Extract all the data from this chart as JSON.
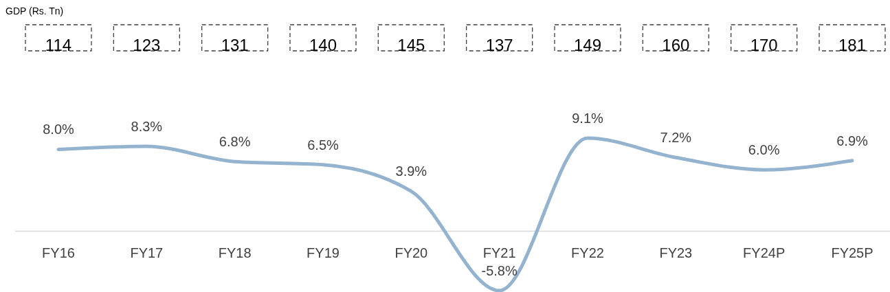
{
  "chart_data": {
    "type": "line",
    "categories": [
      "FY16",
      "FY17",
      "FY18",
      "FY19",
      "FY20",
      "FY21",
      "FY22",
      "FY23",
      "FY24P",
      "FY25P"
    ],
    "series": [
      {
        "color": "#94b3cf",
        "values": [
          8.0,
          8.3,
          6.8,
          6.5,
          3.9,
          -5.8,
          9.1,
          7.2,
          6.0,
          6.9
        ],
        "value_labels": [
          "8.0%",
          "8.3%",
          "6.8%",
          "6.5%",
          "3.9%",
          "-5.8%",
          "9.1%",
          "7.2%",
          "6.0%",
          "6.9%"
        ]
      }
    ],
    "annotations": [
      "GDP (Rs. Tn)",
      "114",
      "123",
      "131",
      "140",
      "145",
      "137",
      "149",
      "160",
      "170",
      "181"
    ],
    "line_style": "solid",
    "tick_labels": "x"
  }
}
